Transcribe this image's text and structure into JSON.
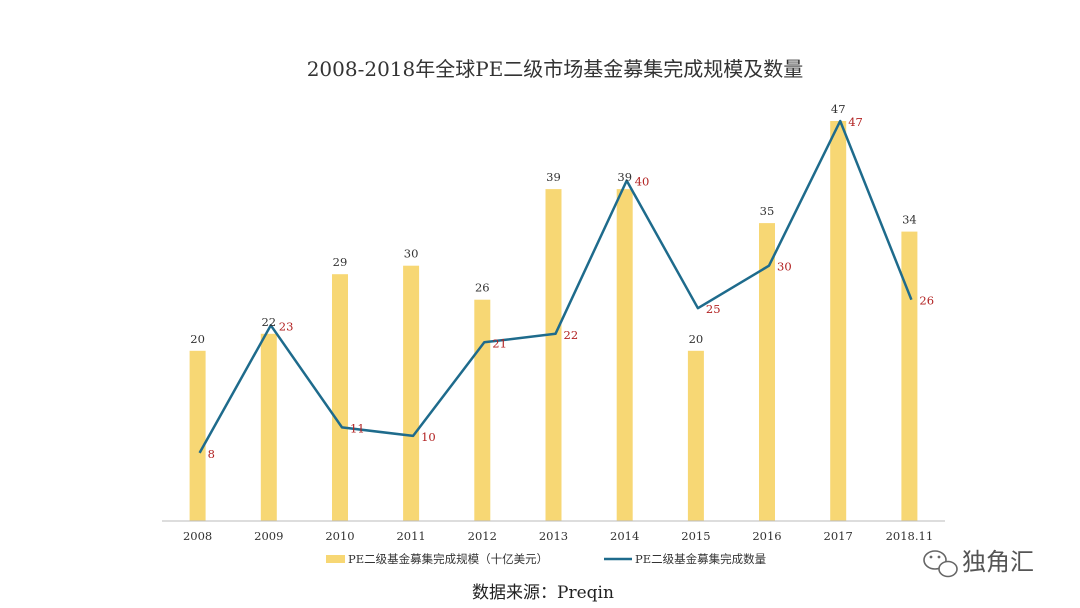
{
  "colors": {
    "bar": "#F7D774",
    "line": "#1E6B8C",
    "line_label": "#B22222",
    "axis": "#BBBBBB",
    "text": "#333333"
  },
  "chart_data": {
    "type": "bar",
    "title": "2008-2018年全球PE二级市场基金募集完成规模及数量",
    "categories": [
      "2008",
      "2009",
      "2010",
      "2011",
      "2012",
      "2013",
      "2014",
      "2015",
      "2016",
      "2017",
      "2018.11"
    ],
    "series": [
      {
        "name": "PE二级基金募集完成规模（十亿美元）",
        "type": "bar",
        "values": [
          20,
          22,
          29,
          30,
          26,
          39,
          39,
          20,
          35,
          47,
          34
        ]
      },
      {
        "name": "PE二级基金募集完成数量",
        "type": "line",
        "values": [
          8,
          23,
          11,
          10,
          21,
          22,
          40,
          25,
          30,
          47,
          26
        ]
      }
    ],
    "ylim": [
      0,
      47
    ],
    "grid": false,
    "legend_position": "bottom"
  },
  "source_note": "数据来源：Preqin",
  "watermark": {
    "icon": "wechat-icon",
    "text": "独角汇"
  }
}
